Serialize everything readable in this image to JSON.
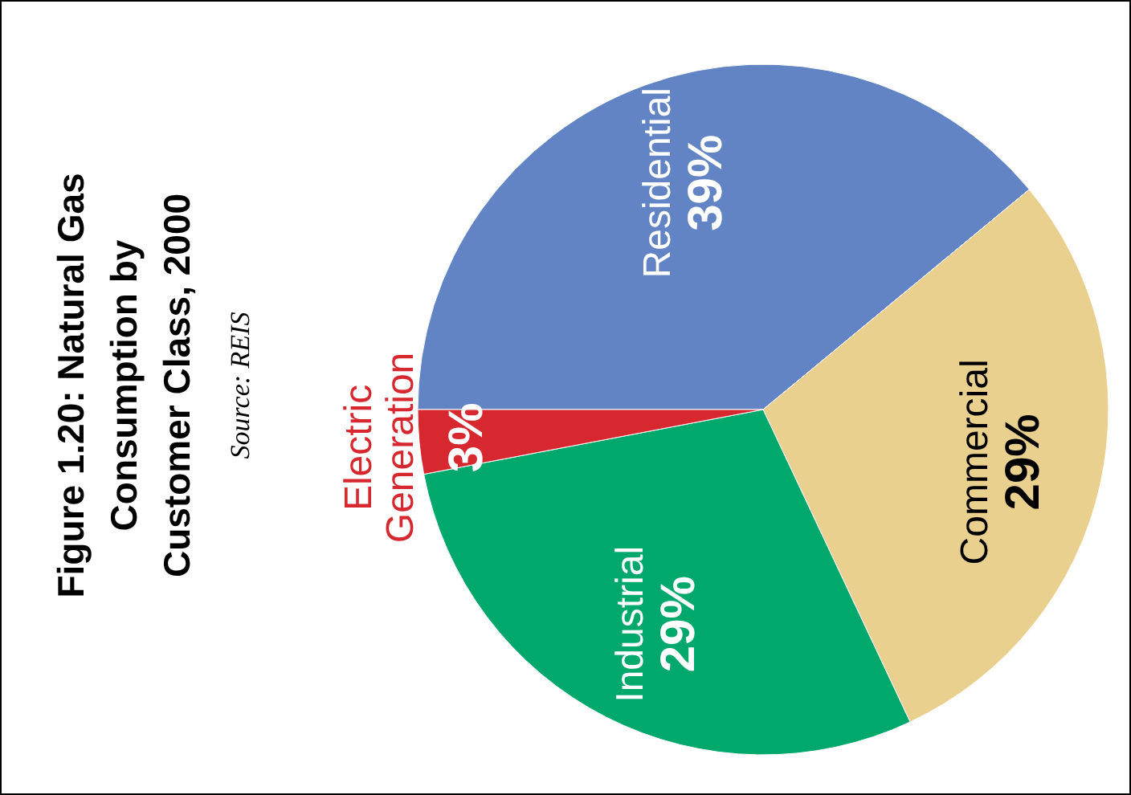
{
  "chart_data": {
    "type": "pie",
    "title": "Figure 1.20: Natural Gas\nConsumption by\nCustomer Class, 2000",
    "annotations": [
      "Source: REIS"
    ],
    "categories": [
      "Residential",
      "Commercial",
      "Industrial",
      "Electric\nGeneration"
    ],
    "values": [
      39,
      29,
      29,
      3
    ],
    "colors": [
      "#6384c4",
      "#e9d08f",
      "#00a86b",
      "#d7282f"
    ],
    "value_labels": [
      "39%",
      "29%",
      "29%",
      "3%"
    ]
  }
}
